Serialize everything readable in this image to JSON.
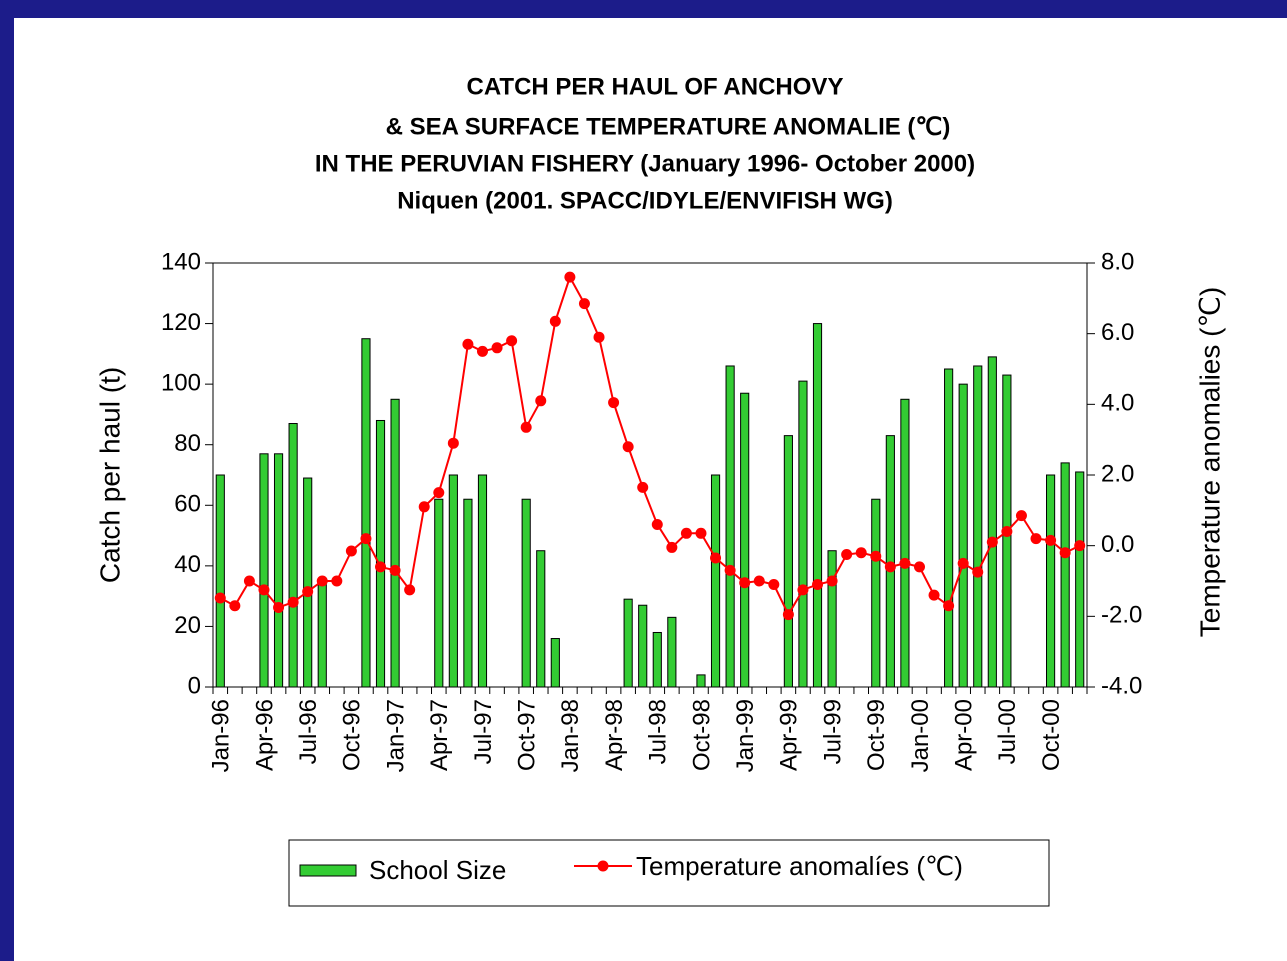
{
  "chart_data": {
    "type": "bar",
    "title": [
      "CATCH PER HAUL OF ANCHOVY",
      "&  SEA SURFACE TEMPERATURE  ANOMALIE (℃)",
      "IN THE PERUVIAN FISHERY (January 1996- October 2000)",
      "Niquen (2001. SPACC/IDYLE/ENVIFISH WG)"
    ],
    "y_label": "Catch per haul (t)",
    "y2_label": "Temperature anomalies  (℃)",
    "categories": [
      "Jan-96",
      null,
      null,
      "Apr-96",
      null,
      null,
      "Jul-96",
      null,
      null,
      "Oct-96",
      null,
      null,
      "Jan-97",
      null,
      null,
      "Apr-97",
      null,
      null,
      "Jul-97",
      null,
      null,
      "Oct-97",
      null,
      null,
      "Jan-98",
      null,
      null,
      "Apr-98",
      null,
      null,
      "Jul-98",
      null,
      null,
      "Oct-98",
      null,
      null,
      "Jan-99",
      null,
      null,
      "Apr-99",
      null,
      null,
      "Jul-99",
      null,
      null,
      "Oct-99",
      null,
      null,
      "Jan-00",
      null,
      null,
      "Apr-00",
      null,
      null,
      "Jul-00",
      null,
      null,
      "Oct-00",
      null,
      null
    ],
    "series": [
      {
        "name": "School Size",
        "type": "bar",
        "color": "#33cc33",
        "values": [
          70,
          null,
          null,
          77,
          77,
          87,
          69,
          35,
          null,
          null,
          115,
          88,
          95,
          null,
          null,
          62,
          70,
          62,
          70,
          null,
          null,
          62,
          45,
          16,
          null,
          null,
          null,
          null,
          29,
          27,
          18,
          23,
          null,
          4,
          70,
          106,
          97,
          null,
          null,
          83,
          101,
          120,
          45,
          null,
          null,
          62,
          83,
          95,
          null,
          null,
          105,
          100,
          106,
          109,
          103,
          null,
          null,
          70,
          74,
          71
        ]
      },
      {
        "name": "Temperature anomalíes (℃)",
        "type": "line",
        "axis": "y2",
        "color": "#ff0000",
        "values": [
          -1.48,
          -1.7,
          -1.0,
          -1.25,
          -1.75,
          -1.6,
          -1.3,
          -1.0,
          -1.0,
          -0.15,
          0.2,
          -0.6,
          -0.7,
          -1.25,
          1.1,
          1.5,
          2.9,
          5.7,
          5.5,
          5.6,
          5.8,
          3.35,
          4.1,
          6.35,
          7.6,
          6.85,
          5.9,
          4.05,
          2.8,
          1.65,
          0.6,
          -0.05,
          0.35,
          0.35,
          -0.35,
          -0.7,
          -1.05,
          -1.0,
          -1.1,
          -1.95,
          -1.25,
          -1.1,
          -1.0,
          -0.25,
          -0.2,
          -0.3,
          -0.6,
          -0.5,
          -0.6,
          -1.4,
          -1.7,
          -0.5,
          -0.75,
          0.1,
          0.4,
          0.85,
          0.2,
          0.15,
          -0.2,
          0.0
        ]
      }
    ],
    "ylim": [
      0,
      140
    ],
    "yticks": [
      0,
      20,
      40,
      60,
      80,
      100,
      120,
      140
    ],
    "y2lim": [
      -4,
      8
    ],
    "y2ticks": [
      {
        "value": -4,
        "label": "-4.0"
      },
      {
        "value": -2,
        "label": "-2.0"
      },
      {
        "value": 0,
        "label": "0.0"
      },
      {
        "value": 2,
        "label": "2.0"
      },
      {
        "value": 4,
        "label": "4.0"
      },
      {
        "value": 6,
        "label": "6.0"
      },
      {
        "value": 8,
        "label": "8.0"
      }
    ],
    "grid": false,
    "legend": "bottom"
  }
}
